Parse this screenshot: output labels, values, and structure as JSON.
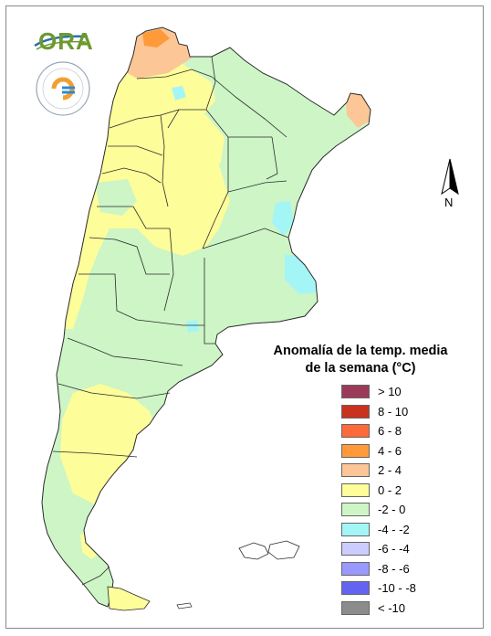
{
  "legend": {
    "title_line1": "Anomalía de la temp. media",
    "title_line2": "de la semana (°C)",
    "items": [
      {
        "label": "> 10",
        "color": "#9c3a5a"
      },
      {
        "label": "8 - 10",
        "color": "#c8321e"
      },
      {
        "label": "6 - 8",
        "color": "#ff6a3a"
      },
      {
        "label": "4 - 6",
        "color": "#ff9a3a"
      },
      {
        "label": "2 - 4",
        "color": "#fcc696"
      },
      {
        "label": "0 - 2",
        "color": "#fdfd9a"
      },
      {
        "label": "-2 - 0",
        "color": "#cdf5c6"
      },
      {
        "label": "-4 - -2",
        "color": "#a4f6f6"
      },
      {
        "label": "-6 - -4",
        "color": "#ccccff"
      },
      {
        "label": "-8 - -6",
        "color": "#9999ff"
      },
      {
        "label": "-10 - -8",
        "color": "#6464f0"
      },
      {
        "label": "< -10",
        "color": "#8c8c8c"
      }
    ]
  },
  "north_arrow": {
    "label": "N"
  },
  "logos": {
    "ora": "ORA"
  },
  "colors": {
    "base": "#cdf5c6",
    "warm": "#fdfd9a",
    "hot": "#fcc696",
    "hotter": "#ff9a3a",
    "cool": "#a4f6f6",
    "border": "#2a2a2a"
  }
}
